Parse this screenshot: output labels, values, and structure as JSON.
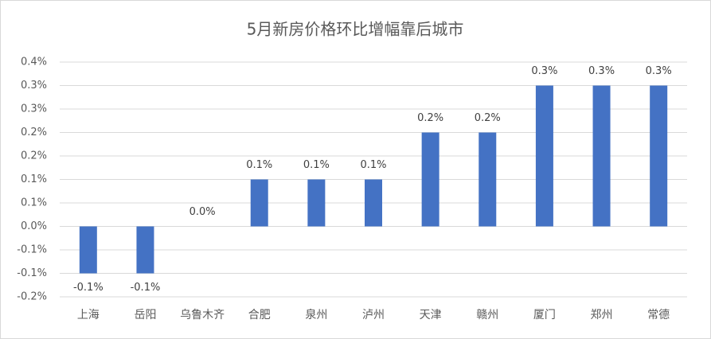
{
  "chart_data": {
    "type": "bar",
    "title": "5月新房价格环比增幅靠后城市",
    "categories": [
      "上海",
      "岳阳",
      "乌鲁木齐",
      "合肥",
      "泉州",
      "泸州",
      "天津",
      "赣州",
      "厦门",
      "郑州",
      "常德"
    ],
    "values": [
      -0.1,
      -0.1,
      0,
      0.1,
      0.1,
      0.1,
      0.2,
      0.2,
      0.3,
      0.3,
      0.3
    ],
    "value_labels": [
      "-0.1%",
      "-0.1%",
      "0.0%",
      "0.1%",
      "0.1%",
      "0.1%",
      "0.2%",
      "0.2%",
      "0.3%",
      "0.3%",
      "0.3%"
    ],
    "color": "#4472c4",
    "ylim": [
      -0.15,
      0.35
    ],
    "yticks": [
      {
        "value": -0.15,
        "label": "-0.2%"
      },
      {
        "value": -0.1,
        "label": "-0.1%"
      },
      {
        "value": -0.05,
        "label": "-0.1%"
      },
      {
        "value": 0,
        "label": "0.0%"
      },
      {
        "value": 0.05,
        "label": "0.1%"
      },
      {
        "value": 0.1,
        "label": "0.1%"
      },
      {
        "value": 0.15,
        "label": "0.2%"
      },
      {
        "value": 0.2,
        "label": "0.2%"
      },
      {
        "value": 0.25,
        "label": "0.3%"
      },
      {
        "value": 0.3,
        "label": "0.3%"
      },
      {
        "value": 0.35,
        "label": "0.4%"
      }
    ],
    "grid": true
  }
}
